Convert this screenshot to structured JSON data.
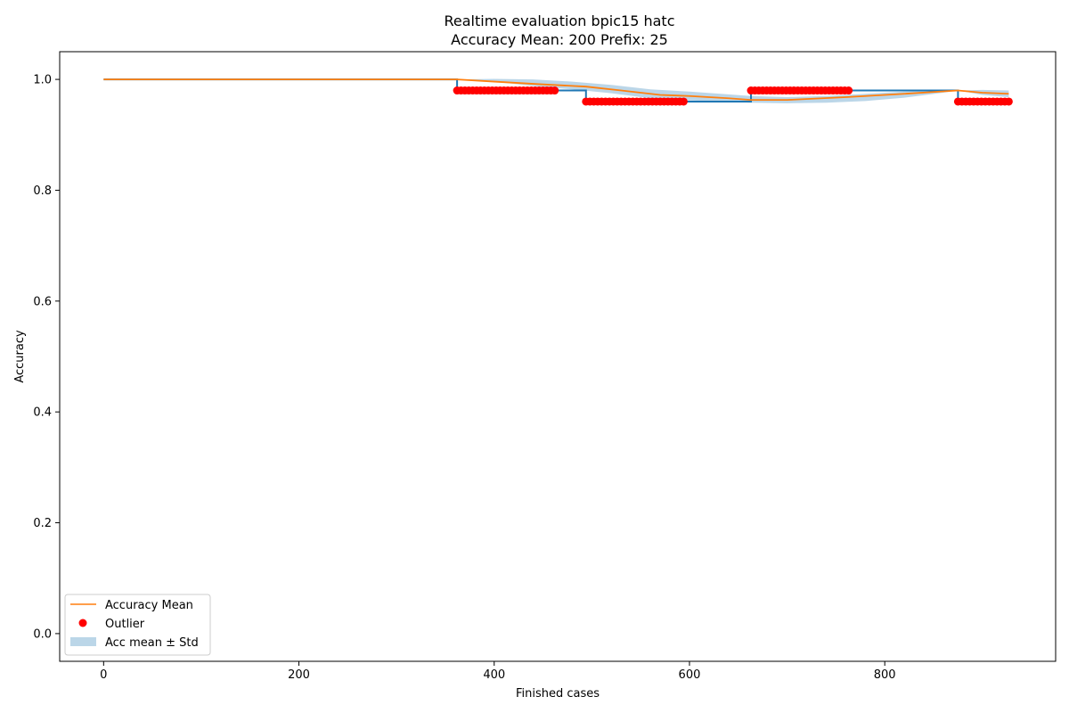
{
  "chart_data": {
    "type": "line",
    "title_line1": "Realtime evaluation bpic15 hatc",
    "title_line2": "Accuracy Mean: 200 Prefix: 25",
    "xlabel": "Finished cases",
    "ylabel": "Accuracy",
    "xlim": [
      -45,
      975
    ],
    "ylim": [
      -0.05,
      1.05
    ],
    "xticks": [
      0,
      200,
      400,
      600,
      800
    ],
    "yticks": [
      0.0,
      0.2,
      0.4,
      0.6,
      0.8,
      1.0
    ],
    "ytick_labels": [
      "0.0",
      "0.2",
      "0.4",
      "0.6",
      "0.8",
      "1.0"
    ],
    "grid": false,
    "legend_position": "lower-left",
    "legend": [
      "Accuracy Mean",
      "Outlier",
      "Acc mean ± Std"
    ],
    "colors": {
      "accuracy": "#1f77b4",
      "mean": "#ff7f0e",
      "outlier": "#ff0000",
      "band": "#1f77b4"
    },
    "accuracy_line": {
      "x": [
        0,
        362,
        362,
        494,
        494,
        663,
        663,
        875,
        875,
        927
      ],
      "y": [
        1.0,
        1.0,
        0.98,
        0.98,
        0.96,
        0.96,
        0.98,
        0.98,
        0.96,
        0.96
      ]
    },
    "mean_line": {
      "x": [
        0,
        100,
        200,
        300,
        362,
        400,
        450,
        494,
        530,
        570,
        600,
        640,
        663,
        700,
        760,
        820,
        875,
        900,
        927
      ],
      "y": [
        1.0,
        1.0,
        1.0,
        1.0,
        1.0,
        0.996,
        0.991,
        0.987,
        0.98,
        0.972,
        0.97,
        0.966,
        0.963,
        0.963,
        0.968,
        0.974,
        0.98,
        0.976,
        0.974
      ]
    },
    "std_band": {
      "x": [
        0,
        362,
        400,
        440,
        480,
        520,
        560,
        600,
        640,
        663,
        700,
        740,
        780,
        820,
        860,
        875,
        900,
        927
      ],
      "upper": [
        1.0,
        1.0,
        1.001,
        1.0,
        0.996,
        0.99,
        0.982,
        0.978,
        0.973,
        0.97,
        0.968,
        0.97,
        0.974,
        0.978,
        0.98,
        0.98,
        0.981,
        0.98
      ],
      "lower": [
        1.0,
        1.0,
        0.996,
        0.988,
        0.982,
        0.975,
        0.966,
        0.962,
        0.96,
        0.958,
        0.957,
        0.958,
        0.961,
        0.967,
        0.976,
        0.98,
        0.972,
        0.968
      ]
    },
    "outliers": [
      {
        "x_start": 362,
        "x_end": 463,
        "y": 0.98
      },
      {
        "x_start": 494,
        "x_end": 594,
        "y": 0.96
      },
      {
        "x_start": 663,
        "x_end": 763,
        "y": 0.98
      },
      {
        "x_start": 875,
        "x_end": 927,
        "y": 0.96
      }
    ],
    "outlier_step": 4
  }
}
